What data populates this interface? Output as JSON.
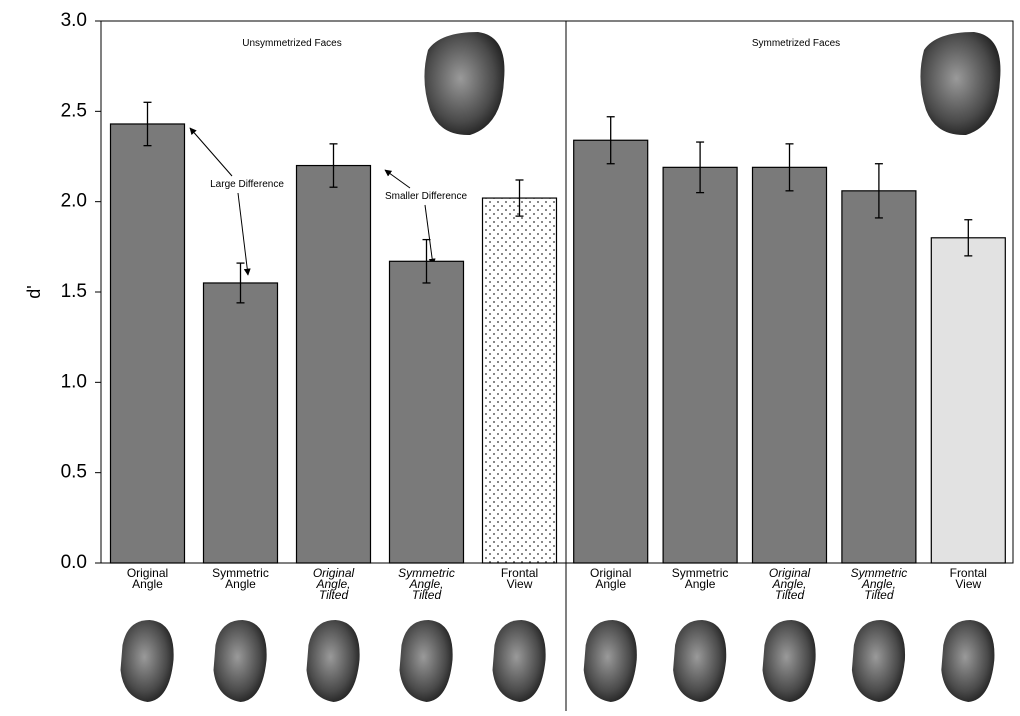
{
  "chart_data": {
    "type": "bar",
    "ylabel": "d'",
    "panels": [
      "Unsymmetrized Faces",
      "Symmetrized Faces"
    ],
    "categories": [
      [
        "Original",
        "Angle"
      ],
      [
        "Symmetric",
        "Angle"
      ],
      [
        "Original",
        "Angle,",
        "Tilted"
      ],
      [
        "Symmetric",
        "Angle,",
        "Tilted"
      ],
      [
        "Frontal",
        "View"
      ],
      [
        "Original",
        "Angle"
      ],
      [
        "Symmetric",
        "Angle"
      ],
      [
        "Original",
        "Angle,",
        "Tilted"
      ],
      [
        "Symmetric",
        "Angle,",
        "Tilted"
      ],
      [
        "Frontal",
        "View"
      ]
    ],
    "category_styles": [
      "normal",
      "normal",
      "italic",
      "italic",
      "normal",
      "normal",
      "normal",
      "italic",
      "italic",
      "normal"
    ],
    "values": [
      2.43,
      1.55,
      2.2,
      1.67,
      2.02,
      2.34,
      2.19,
      2.19,
      2.06,
      1.8
    ],
    "errors": [
      0.12,
      0.11,
      0.12,
      0.12,
      0.1,
      0.13,
      0.14,
      0.13,
      0.15,
      0.1
    ],
    "colors": [
      "#7a7a7a",
      "#7a7a7a",
      "#7a7a7a",
      "#7a7a7a",
      "dotted",
      "#7a7a7a",
      "#7a7a7a",
      "#7a7a7a",
      "#7a7a7a",
      "#e2e2e2"
    ],
    "annotations": [
      "Large Difference",
      "Smaller Difference"
    ],
    "ylim": [
      0,
      3
    ],
    "yticks": [
      {
        "value": 0,
        "label": "0.0"
      },
      {
        "value": 0.5,
        "label": "0.5"
      },
      {
        "value": 1,
        "label": "1.0"
      },
      {
        "value": 1.5,
        "label": "1.5"
      },
      {
        "value": 2,
        "label": "2.0"
      },
      {
        "value": 2.5,
        "label": "2.5"
      },
      {
        "value": 3,
        "label": "3.0"
      }
    ]
  }
}
